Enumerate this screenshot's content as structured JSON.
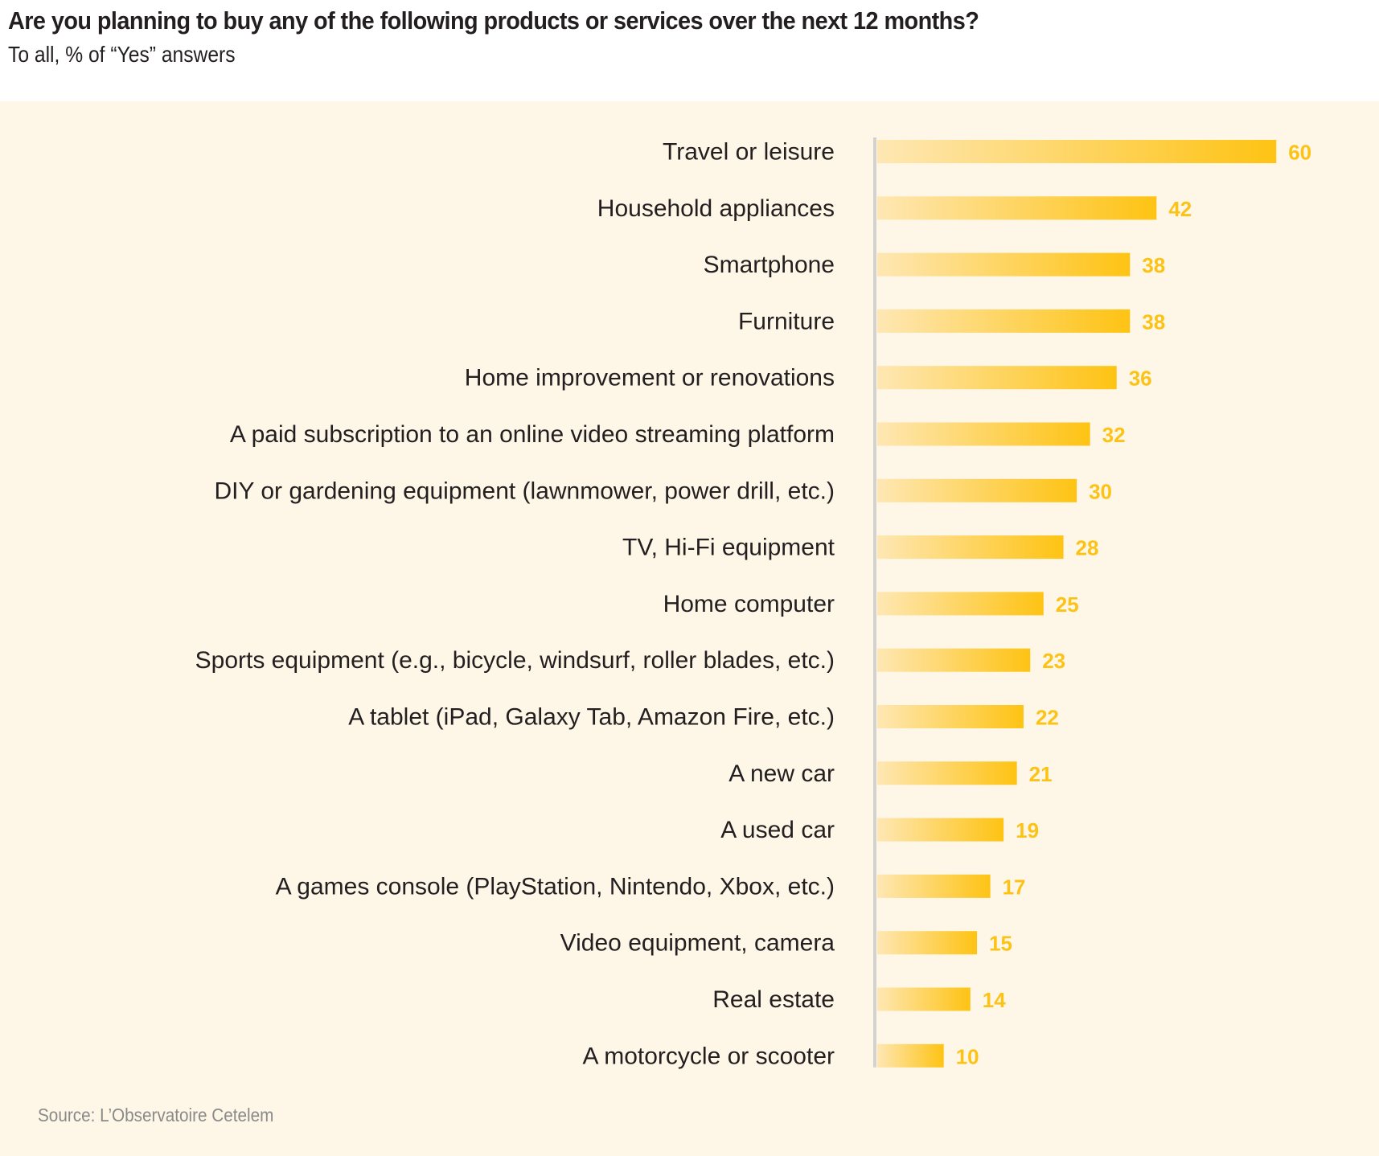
{
  "header": {
    "title": "Are you planning to buy any of the following products or services over the next 12 months?",
    "subtitle": "To all, % of “Yes” answers"
  },
  "footer": {
    "source": "Source: L’Observatoire Cetelem"
  },
  "colors": {
    "panel_background": "#fef6e6",
    "bar_start": "#fee7b3",
    "bar_end": "#fec313",
    "value_label": "#fcc316",
    "axis_line": "#d4d2cf",
    "text": "#231f20",
    "source_text": "#8a8a8a"
  },
  "chart_data": {
    "type": "bar",
    "orientation": "horizontal",
    "title": "Are you planning to buy any of the following products or services over the next 12 months?",
    "subtitle": "To all, % of “Yes” answers",
    "xlabel": "",
    "ylabel": "",
    "unit": "%",
    "xlim": [
      0,
      60
    ],
    "grid": false,
    "legend": "none",
    "data_labels": true,
    "categories": [
      "Travel or leisure",
      "Household appliances",
      "Smartphone",
      "Furniture",
      "Home improvement or renovations",
      "A paid subscription to an online video streaming platform",
      "DIY or gardening equipment (lawnmower, power drill, etc.)",
      "TV, Hi-Fi equipment",
      "Home computer",
      "Sports equipment (e.g., bicycle, windsurf, roller blades, etc.)",
      "A tablet (iPad, Galaxy Tab, Amazon Fire, etc.)",
      "A new car",
      "A used car",
      "A games console (PlayStation, Nintendo, Xbox, etc.)",
      "Video equipment, camera",
      "Real estate",
      "A motorcycle or scooter"
    ],
    "values": [
      60,
      42,
      38,
      38,
      36,
      32,
      30,
      28,
      25,
      23,
      22,
      21,
      19,
      17,
      15,
      14,
      10
    ],
    "source": "Source: L’Observatoire Cetelem"
  }
}
